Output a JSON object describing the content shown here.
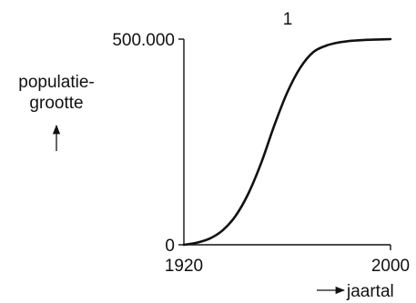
{
  "chart_data": {
    "type": "line",
    "title": "1",
    "ylabel_lines": [
      "populatie-",
      "grootte"
    ],
    "xlabel": "jaartal",
    "x_ticks": [
      "1920",
      "2000"
    ],
    "y_ticks": [
      "0",
      "500.000"
    ],
    "xlim": [
      1920,
      2000
    ],
    "ylim": [
      0,
      500000
    ],
    "grid": false,
    "series": [
      {
        "x": [
          1920,
          1925,
          1930,
          1935,
          1940,
          1945,
          1950,
          1955,
          1960,
          1965,
          1970,
          1975,
          1980,
          1985,
          1990,
          1995,
          2000
        ],
        "y": [
          0,
          5000,
          15000,
          35000,
          70000,
          125000,
          200000,
          290000,
          370000,
          430000,
          468000,
          484000,
          492000,
          496000,
          498000,
          499000,
          500000
        ]
      }
    ],
    "colors": {
      "line": "#111111",
      "axis": "#111111"
    }
  }
}
